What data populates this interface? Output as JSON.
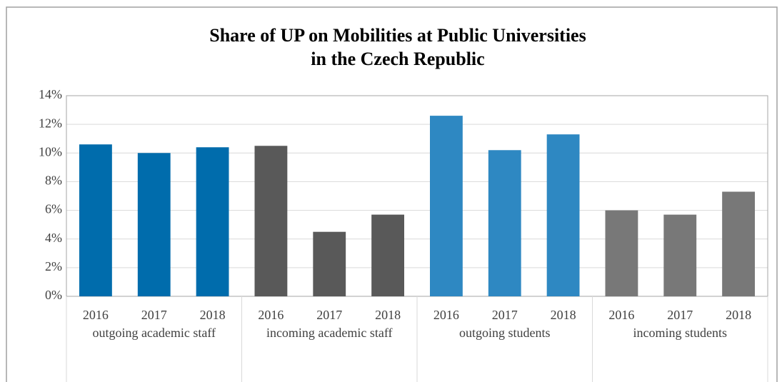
{
  "chart_data": {
    "type": "bar",
    "title": [
      "Share of UP on Mobilities at Public Universities",
      "in the Czech Republic"
    ],
    "categories": [
      "2016",
      "2017",
      "2018"
    ],
    "series": [
      {
        "name": "outgoing academic staff",
        "color": "#006cac",
        "values": [
          10.6,
          10.0,
          10.4
        ]
      },
      {
        "name": "incoming academic staff",
        "color": "#595959",
        "values": [
          10.5,
          4.5,
          5.7
        ]
      },
      {
        "name": "outgoing students",
        "color": "#2e88c2",
        "values": [
          12.6,
          10.2,
          11.3
        ]
      },
      {
        "name": "incoming students",
        "color": "#787878",
        "values": [
          6.0,
          5.7,
          7.3
        ]
      }
    ],
    "ylim": [
      0,
      14
    ],
    "yticks": [
      {
        "value": 0,
        "label": "0%"
      },
      {
        "value": 2,
        "label": "2%"
      },
      {
        "value": 4,
        "label": "4%"
      },
      {
        "value": 6,
        "label": "6%"
      },
      {
        "value": 8,
        "label": "8%"
      },
      {
        "value": 10,
        "label": "10%"
      },
      {
        "value": 12,
        "label": "12%"
      },
      {
        "value": 14,
        "label": "14%"
      }
    ],
    "grid": true
  }
}
